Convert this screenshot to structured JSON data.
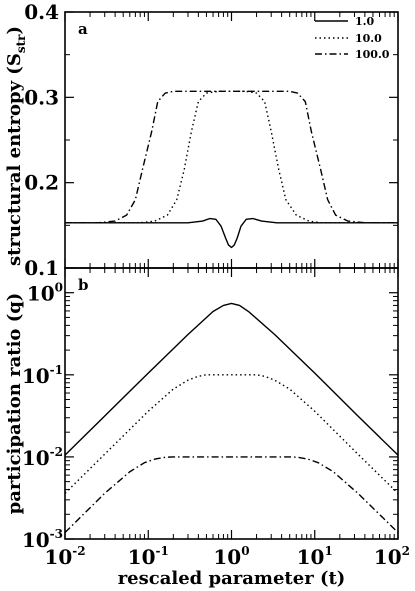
{
  "chart_data": [
    {
      "id": "a",
      "type": "line",
      "panel_label": "a",
      "xlabel": "",
      "ylabel_main": "structural entropy (S",
      "ylabel_sub": "str",
      "ylabel_end": ")",
      "xscale": "log",
      "xlim": [
        0.01,
        100
      ],
      "ylim": [
        0.1,
        0.4
      ],
      "yticks": [
        0.1,
        0.2,
        0.3,
        0.4
      ],
      "ytick_labels": [
        "0.1",
        "0.2",
        "0.3",
        "0.4"
      ],
      "legend_position": "top-right",
      "series": [
        {
          "name": "1.0",
          "style": "solid",
          "x": [
            0.01,
            0.1,
            0.3,
            0.45,
            0.55,
            0.65,
            0.75,
            0.85,
            0.92,
            1.0,
            1.08,
            1.17,
            1.3,
            1.5,
            1.8,
            2.3,
            3.5,
            10,
            100
          ],
          "y": [
            0.153,
            0.153,
            0.153,
            0.155,
            0.158,
            0.157,
            0.149,
            0.135,
            0.127,
            0.124,
            0.127,
            0.135,
            0.149,
            0.157,
            0.158,
            0.155,
            0.153,
            0.153,
            0.153
          ]
        },
        {
          "name": "10.0",
          "style": "dotted",
          "x": [
            0.01,
            0.08,
            0.12,
            0.17,
            0.22,
            0.27,
            0.33,
            0.4,
            0.5,
            0.7,
            1.0,
            1.5,
            2.0,
            2.5,
            3.0,
            3.7,
            4.5,
            6.0,
            8.5,
            12,
            100
          ],
          "y": [
            0.153,
            0.153,
            0.155,
            0.162,
            0.18,
            0.215,
            0.26,
            0.295,
            0.305,
            0.307,
            0.307,
            0.307,
            0.305,
            0.295,
            0.26,
            0.215,
            0.18,
            0.162,
            0.155,
            0.153,
            0.153
          ]
        },
        {
          "name": "100.0",
          "style": "dashdot",
          "x": [
            0.01,
            0.025,
            0.04,
            0.055,
            0.07,
            0.085,
            0.11,
            0.13,
            0.16,
            0.2,
            0.5,
            1.0,
            2.0,
            5.0,
            6.2,
            7.7,
            9.1,
            11.8,
            14.3,
            17.8,
            25,
            40,
            100
          ],
          "y": [
            0.153,
            0.153,
            0.155,
            0.162,
            0.18,
            0.215,
            0.26,
            0.295,
            0.305,
            0.307,
            0.307,
            0.307,
            0.307,
            0.307,
            0.305,
            0.295,
            0.26,
            0.215,
            0.18,
            0.162,
            0.155,
            0.153,
            0.153
          ]
        }
      ]
    },
    {
      "id": "b",
      "type": "line",
      "panel_label": "b",
      "xlabel": "rescaled parameter (t)",
      "ylabel": "participation ratio (q)",
      "xscale": "log",
      "yscale": "log",
      "xlim": [
        0.01,
        100
      ],
      "ylim": [
        0.001,
        2
      ],
      "x_ticks": [
        {
          "base": "10",
          "exp": "-2"
        },
        {
          "base": "10",
          "exp": "-1"
        },
        {
          "base": "10",
          "exp": "0"
        },
        {
          "base": "10",
          "exp": "1"
        },
        {
          "base": "10",
          "exp": "2"
        }
      ],
      "y_ticks": [
        {
          "base": "10",
          "exp": "-3"
        },
        {
          "base": "10",
          "exp": "-2"
        },
        {
          "base": "10",
          "exp": "-1"
        },
        {
          "base": "10",
          "exp": "0"
        }
      ],
      "series": [
        {
          "name": "1.0",
          "style": "solid",
          "x": [
            0.01,
            0.03,
            0.1,
            0.3,
            0.6,
            0.8,
            1.0,
            1.25,
            1.6,
            3.3,
            10,
            33,
            100
          ],
          "y": [
            0.0105,
            0.0315,
            0.105,
            0.31,
            0.59,
            0.7,
            0.74,
            0.7,
            0.59,
            0.31,
            0.105,
            0.0315,
            0.0105
          ]
        },
        {
          "name": "10.0",
          "style": "dotted",
          "x": [
            0.01,
            0.03,
            0.1,
            0.2,
            0.3,
            0.4,
            0.5,
            1.0,
            2.0,
            2.5,
            3.3,
            5,
            10,
            33,
            100
          ],
          "y": [
            0.0036,
            0.0108,
            0.036,
            0.067,
            0.086,
            0.096,
            0.1,
            0.1,
            0.1,
            0.096,
            0.086,
            0.067,
            0.036,
            0.0108,
            0.0036
          ]
        },
        {
          "name": "100.0",
          "style": "dashdot",
          "x": [
            0.01,
            0.03,
            0.06,
            0.09,
            0.12,
            0.16,
            0.2,
            1.0,
            5.0,
            6.2,
            8.3,
            11,
            16.7,
            33,
            100
          ],
          "y": [
            0.0012,
            0.0036,
            0.0066,
            0.0085,
            0.0094,
            0.0099,
            0.01,
            0.01,
            0.01,
            0.0099,
            0.0094,
            0.0085,
            0.0066,
            0.0036,
            0.0012
          ]
        }
      ]
    }
  ]
}
